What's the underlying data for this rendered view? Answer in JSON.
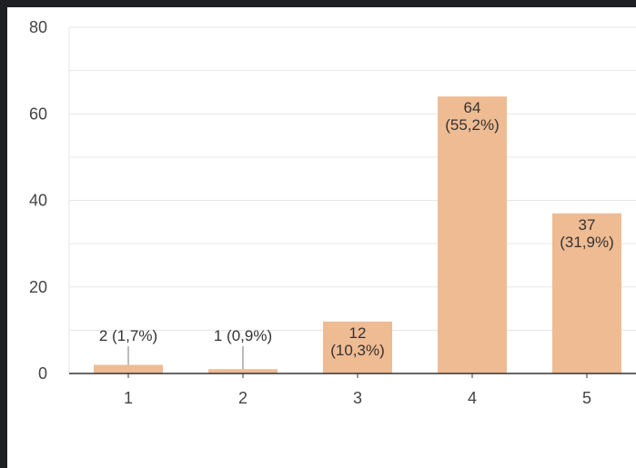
{
  "chart_data": {
    "type": "bar",
    "categories": [
      "1",
      "2",
      "3",
      "4",
      "5"
    ],
    "values": [
      2,
      1,
      12,
      64,
      37
    ],
    "value_labels": [
      "2",
      "1",
      "12",
      "64",
      "37"
    ],
    "percent_labels": [
      "(1,7%)",
      "(0,9%)",
      "(10,3%)",
      "(55,2%)",
      "(31,9%)"
    ],
    "title": "",
    "xlabel": "",
    "ylabel": "",
    "ylim": [
      0,
      80
    ],
    "yticks": [
      "0",
      "20",
      "40",
      "60",
      "80"
    ],
    "grid": true,
    "bar_color": "#efbb93"
  }
}
